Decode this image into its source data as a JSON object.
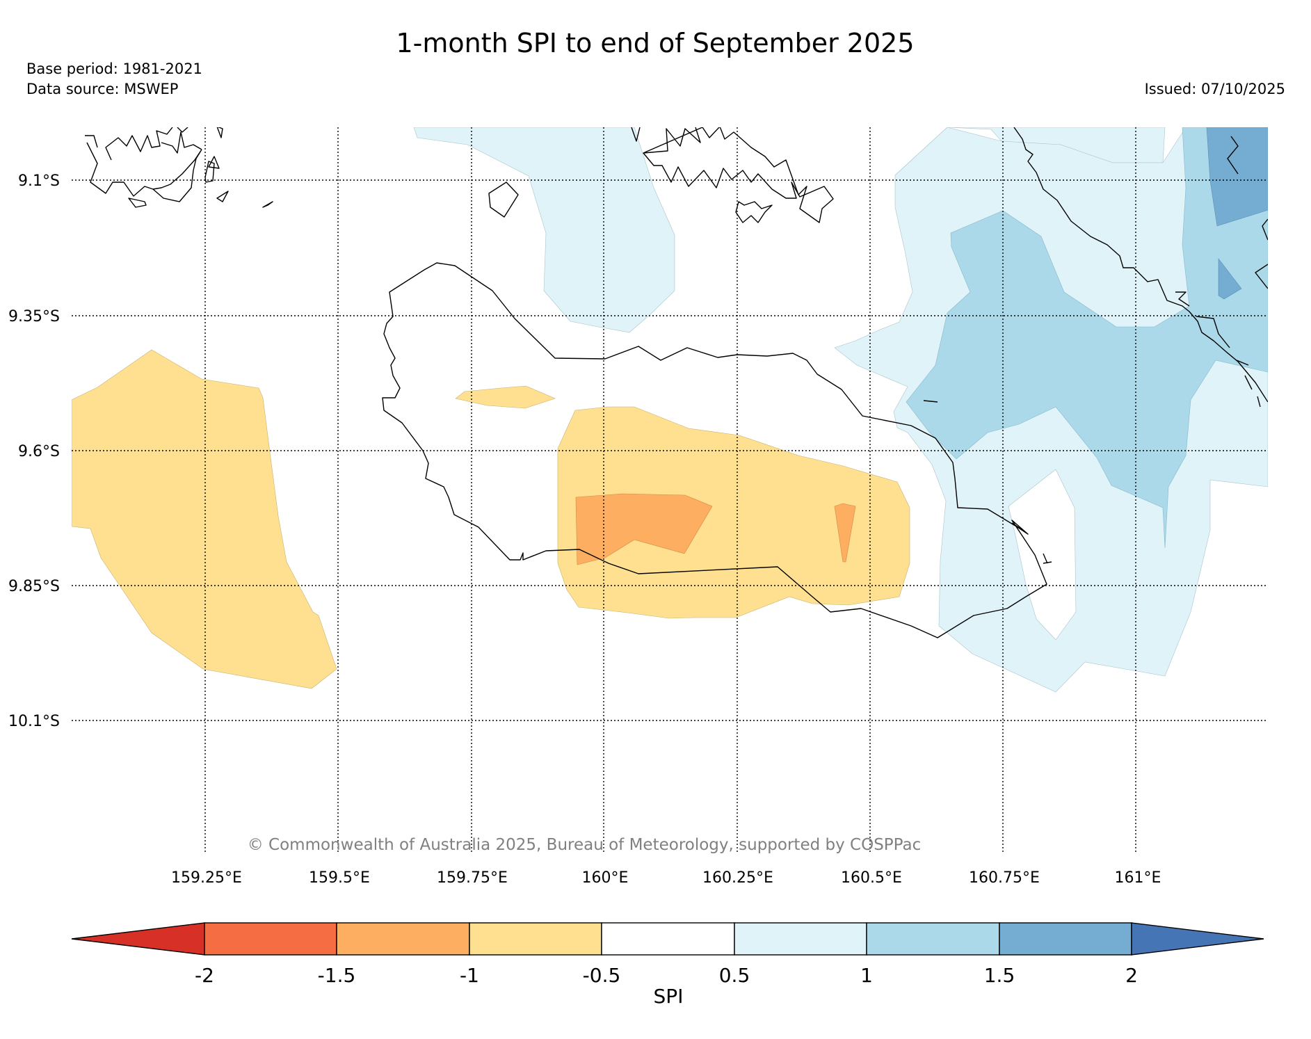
{
  "title": "1-month SPI to end of September 2025",
  "base_period": "Base period: 1981-2021",
  "data_source": "Data source: MSWEP",
  "issued": "Issued: 07/10/2025",
  "copyright": "© Commonwealth of Australia 2025, Bureau of Meteorology, supported by COSPPac",
  "lat_labels": [
    "9.1°S",
    "9.35°S",
    "9.6°S",
    "9.85°S",
    "10.1°S"
  ],
  "lon_labels": [
    "159.25°E",
    "159.5°E",
    "159.75°E",
    "160°E",
    "160.25°E",
    "160.5°E",
    "160.75°E",
    "161°E"
  ],
  "colorbar": {
    "label": "SPI",
    "ticks": [
      "-2",
      "-1.5",
      "-1",
      "-0.5",
      "0.5",
      "1",
      "1.5",
      "2"
    ],
    "colors": {
      "below_min": "#d73027",
      "minus2_to_minus1_5": "#f46d43",
      "minus1_5_to_minus1": "#fdae61",
      "minus1_to_minus0_5": "#fee090",
      "minus0_5_to_0_5": "#ffffff",
      "0_5_to_1": "#e0f3f8",
      "1_to_1_5": "#abd9e9",
      "1_5_to_2": "#74add1",
      "above_max": "#4575b4"
    }
  }
}
